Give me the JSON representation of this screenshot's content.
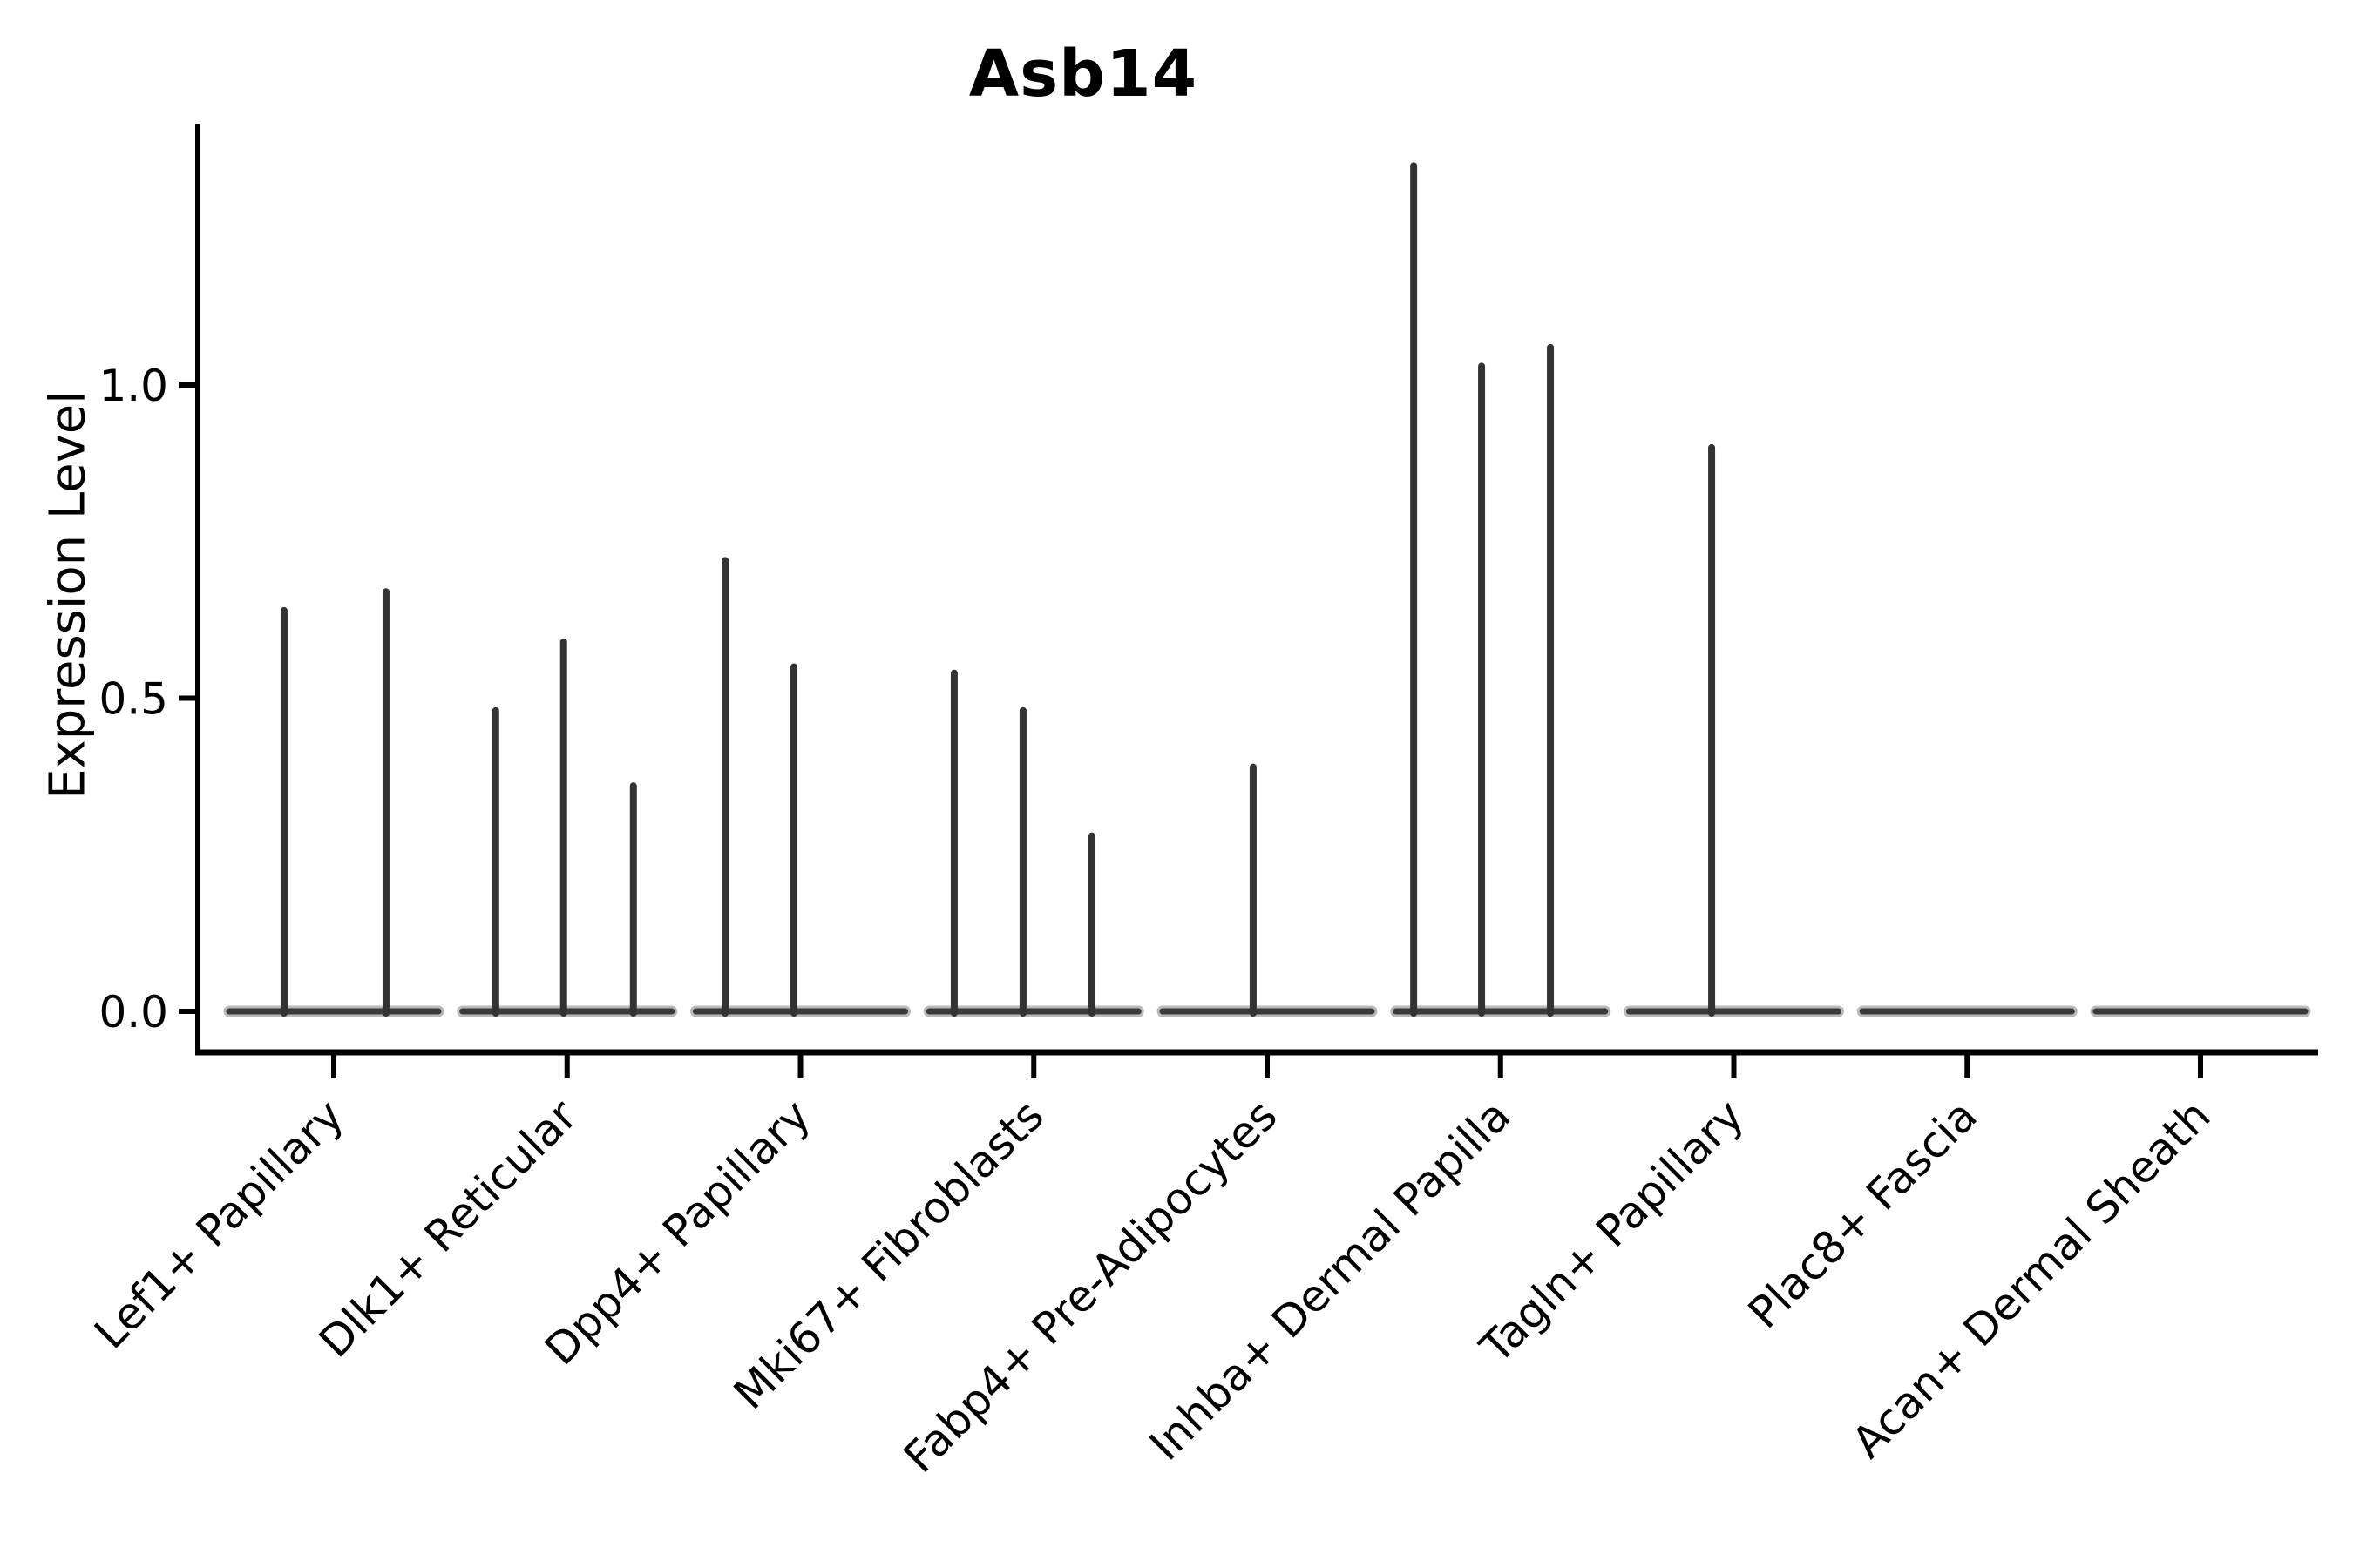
{
  "chart_data": {
    "type": "violin",
    "title": "Asb14",
    "ylabel": "Expression Level",
    "xlabel": "",
    "legend": "none",
    "grid": false,
    "ylim": [
      -0.065,
      1.417
    ],
    "yticks_labels": [
      "0.0",
      "0.5",
      "1.0"
    ],
    "ytick_values": [
      0.0,
      0.5,
      1.0
    ],
    "violin_color": "#333333",
    "baseline_color": "#3a3a3a",
    "axis_color": "#000000",
    "categories": [
      "Lef1+ Papillary",
      "Dlk1+ Reticular",
      "Dpp4+ Papillary",
      "Mki67+ Fibroblasts",
      "Fabp4+ Pre-Adipocytes",
      "Inhba+ Dermal Papilla",
      "Tagln+ Papillary",
      "Plac8+ Fascia",
      "Acan+ Dermal Sheath"
    ],
    "series": [
      {
        "category": "Lef1+ Papillary",
        "spikes": [
          {
            "pos": -0.213,
            "value": 0.64
          },
          {
            "pos": 0.224,
            "value": 0.67
          }
        ]
      },
      {
        "category": "Dlk1+ Reticular",
        "spikes": [
          {
            "pos": -0.306,
            "value": 0.48
          },
          {
            "pos": -0.015,
            "value": 0.59
          },
          {
            "pos": 0.284,
            "value": 0.36
          }
        ]
      },
      {
        "category": "Dpp4+ Papillary",
        "spikes": [
          {
            "pos": -0.323,
            "value": 0.72
          },
          {
            "pos": -0.028,
            "value": 0.55
          }
        ]
      },
      {
        "category": "Mki67+ Fibroblasts",
        "spikes": [
          {
            "pos": -0.341,
            "value": 0.54
          },
          {
            "pos": -0.046,
            "value": 0.48
          },
          {
            "pos": 0.249,
            "value": 0.28
          }
        ]
      },
      {
        "category": "Fabp4+ Pre-Adipocytes",
        "spikes": [
          {
            "pos": -0.06,
            "value": 0.39
          }
        ]
      },
      {
        "category": "Inhba+ Dermal Papilla",
        "spikes": [
          {
            "pos": -0.372,
            "value": 1.35
          },
          {
            "pos": -0.081,
            "value": 1.03
          },
          {
            "pos": 0.214,
            "value": 1.06
          }
        ]
      },
      {
        "category": "Tagln+ Papillary",
        "spikes": [
          {
            "pos": -0.095,
            "value": 0.9
          }
        ]
      },
      {
        "category": "Plac8+ Fascia",
        "spikes": []
      },
      {
        "category": "Acan+ Dermal Sheath",
        "spikes": []
      }
    ]
  }
}
